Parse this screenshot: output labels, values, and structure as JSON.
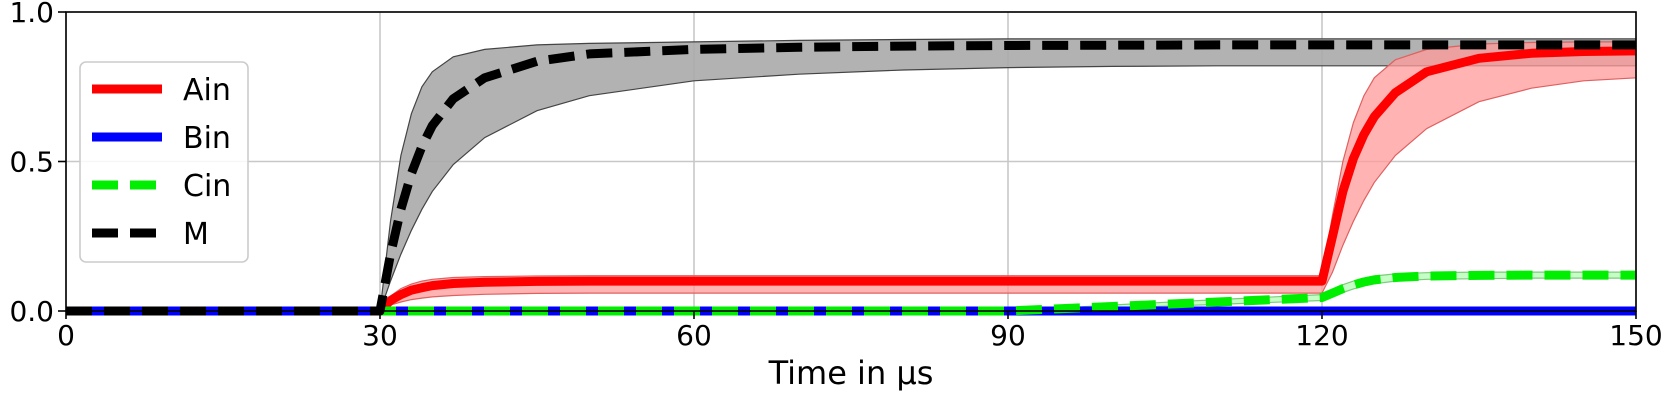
{
  "chart_data": {
    "type": "line",
    "title": "",
    "xlabel": "Time in μs",
    "ylabel": "",
    "xlim": [
      0,
      150
    ],
    "ylim": [
      0,
      1.0
    ],
    "xticks": [
      0,
      30,
      60,
      90,
      120,
      150
    ],
    "xtick_labels": [
      "0",
      "30",
      "60",
      "90",
      "120",
      "150"
    ],
    "yticks": [
      0.0,
      0.5,
      1.0
    ],
    "ytick_labels": [
      "0.0",
      "0.5",
      "1.0"
    ],
    "grid": true,
    "legend_position": "center-left",
    "x": [
      0,
      10,
      20,
      30,
      31,
      32,
      33,
      34,
      35,
      37,
      40,
      45,
      50,
      60,
      70,
      80,
      90,
      100,
      110,
      120,
      121,
      122,
      123,
      124,
      125,
      127,
      130,
      135,
      140,
      145,
      150
    ],
    "series": [
      {
        "name": "Ain",
        "color": "#ff0000",
        "style": "solid",
        "values": [
          0,
          0,
          0,
          0,
          0.035,
          0.055,
          0.07,
          0.078,
          0.085,
          0.092,
          0.096,
          0.099,
          0.1,
          0.1,
          0.1,
          0.1,
          0.1,
          0.1,
          0.1,
          0.1,
          0.25,
          0.4,
          0.51,
          0.59,
          0.65,
          0.73,
          0.8,
          0.845,
          0.862,
          0.868,
          0.87
        ],
        "band_upper": [
          0,
          0,
          0,
          0,
          0.05,
          0.075,
          0.09,
          0.1,
          0.106,
          0.112,
          0.115,
          0.117,
          0.118,
          0.118,
          0.118,
          0.118,
          0.118,
          0.118,
          0.118,
          0.118,
          0.32,
          0.5,
          0.63,
          0.72,
          0.78,
          0.84,
          0.875,
          0.893,
          0.898,
          0.9,
          0.9
        ],
        "band_lower": [
          0,
          0,
          0,
          0,
          0.02,
          0.03,
          0.038,
          0.043,
          0.047,
          0.052,
          0.056,
          0.059,
          0.06,
          0.06,
          0.06,
          0.06,
          0.06,
          0.06,
          0.06,
          0.06,
          0.13,
          0.22,
          0.3,
          0.37,
          0.43,
          0.52,
          0.61,
          0.7,
          0.745,
          0.77,
          0.78
        ]
      },
      {
        "name": "Bin",
        "color": "#0000ff",
        "style": "solid",
        "values": [
          0,
          0,
          0,
          0,
          0,
          0,
          0,
          0,
          0,
          0,
          0,
          0,
          0,
          0,
          0,
          0,
          0,
          0,
          0,
          0,
          0,
          0,
          0,
          0,
          0,
          0,
          0,
          0,
          0,
          0,
          0
        ]
      },
      {
        "name": "Cin",
        "color": "#00ee00",
        "style": "dashed",
        "values": [
          0,
          0,
          0,
          0,
          0,
          0,
          0,
          0,
          0,
          0,
          0,
          0,
          0,
          0,
          0,
          0,
          0,
          0.015,
          0.03,
          0.045,
          0.06,
          0.075,
          0.087,
          0.097,
          0.104,
          0.112,
          0.117,
          0.119,
          0.12,
          0.12,
          0.12
        ],
        "band_upper": [
          0,
          0,
          0,
          0,
          0,
          0,
          0,
          0,
          0,
          0,
          0,
          0,
          0,
          0,
          0,
          0,
          0,
          0.02,
          0.038,
          0.055,
          0.072,
          0.088,
          0.1,
          0.11,
          0.117,
          0.124,
          0.128,
          0.13,
          0.13,
          0.13,
          0.13
        ],
        "band_lower": [
          0,
          0,
          0,
          0,
          0,
          0,
          0,
          0,
          0,
          0,
          0,
          0,
          0,
          0,
          0,
          0,
          0,
          0.01,
          0.022,
          0.035,
          0.048,
          0.062,
          0.074,
          0.084,
          0.091,
          0.1,
          0.106,
          0.108,
          0.11,
          0.11,
          0.11
        ]
      },
      {
        "name": "M",
        "color": "#000000",
        "style": "dashed",
        "values": [
          0,
          0,
          0,
          0,
          0.19,
          0.34,
          0.46,
          0.55,
          0.62,
          0.71,
          0.78,
          0.835,
          0.86,
          0.875,
          0.882,
          0.886,
          0.888,
          0.889,
          0.89,
          0.89,
          0.89,
          0.89,
          0.89,
          0.89,
          0.89,
          0.89,
          0.89,
          0.89,
          0.89,
          0.89,
          0.89
        ],
        "band_upper": [
          0,
          0,
          0,
          0,
          0.3,
          0.52,
          0.66,
          0.75,
          0.8,
          0.85,
          0.875,
          0.89,
          0.895,
          0.9,
          0.905,
          0.908,
          0.91,
          0.91,
          0.91,
          0.91,
          0.91,
          0.91,
          0.91,
          0.91,
          0.91,
          0.91,
          0.91,
          0.91,
          0.91,
          0.91,
          0.91
        ],
        "band_lower": [
          0,
          0,
          0,
          0,
          0.1,
          0.19,
          0.27,
          0.34,
          0.4,
          0.49,
          0.58,
          0.67,
          0.72,
          0.77,
          0.792,
          0.806,
          0.814,
          0.818,
          0.82,
          0.82,
          0.82,
          0.82,
          0.82,
          0.82,
          0.82,
          0.82,
          0.82,
          0.82,
          0.82,
          0.82,
          0.82
        ]
      }
    ],
    "band_colors": {
      "Ain": "#ff9999",
      "Cin": "#b3ffb3",
      "M": "#aaaaaa"
    }
  }
}
